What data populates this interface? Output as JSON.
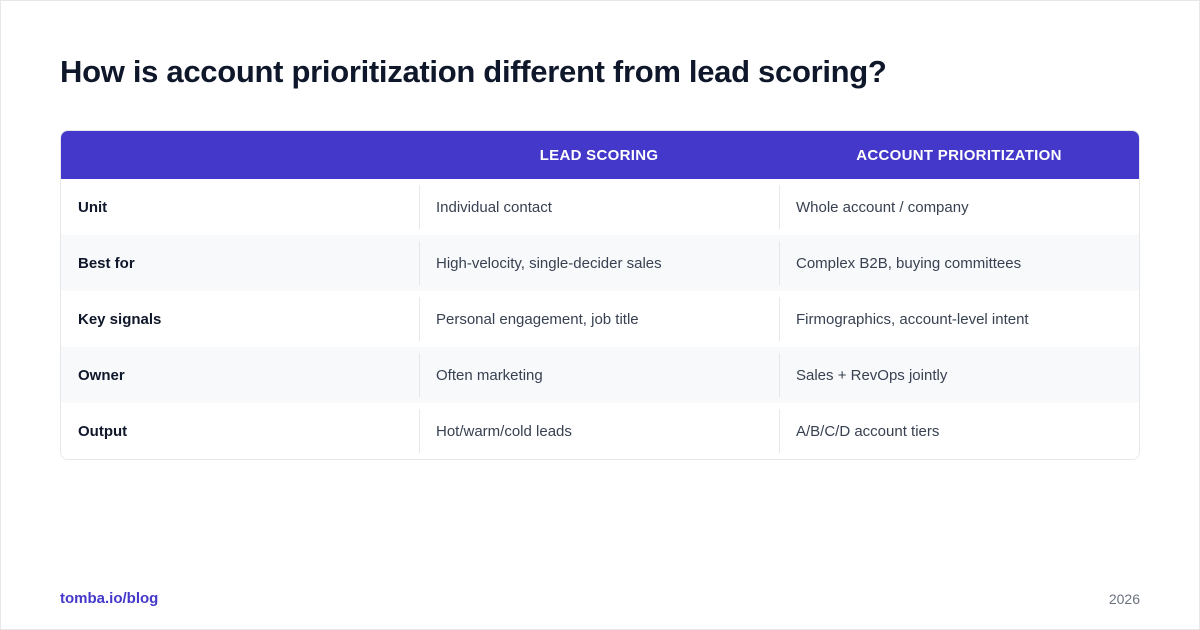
{
  "title": "How is account prioritization different from lead scoring?",
  "table": {
    "columns": [
      "",
      "LEAD SCORING",
      "ACCOUNT PRIORITIZATION"
    ],
    "rows": [
      {
        "label": "Unit",
        "lead": "Individual contact",
        "account": "Whole account / company"
      },
      {
        "label": "Best for",
        "lead": "High-velocity, single-decider sales",
        "account": "Complex B2B, buying committees"
      },
      {
        "label": "Key signals",
        "lead": "Personal engagement, job title",
        "account": "Firmographics, account-level intent"
      },
      {
        "label": "Owner",
        "lead": "Often marketing",
        "account": "Sales + RevOps jointly"
      },
      {
        "label": "Output",
        "lead": "Hot/warm/cold leads",
        "account": "A/B/C/D account tiers"
      }
    ]
  },
  "footer": {
    "link": "tomba.io/blog",
    "year": "2026"
  },
  "colors": {
    "header_bg": "#4338ca",
    "link": "#4338ca",
    "title": "#0f172a",
    "alt_row": "#f8f9fb"
  }
}
